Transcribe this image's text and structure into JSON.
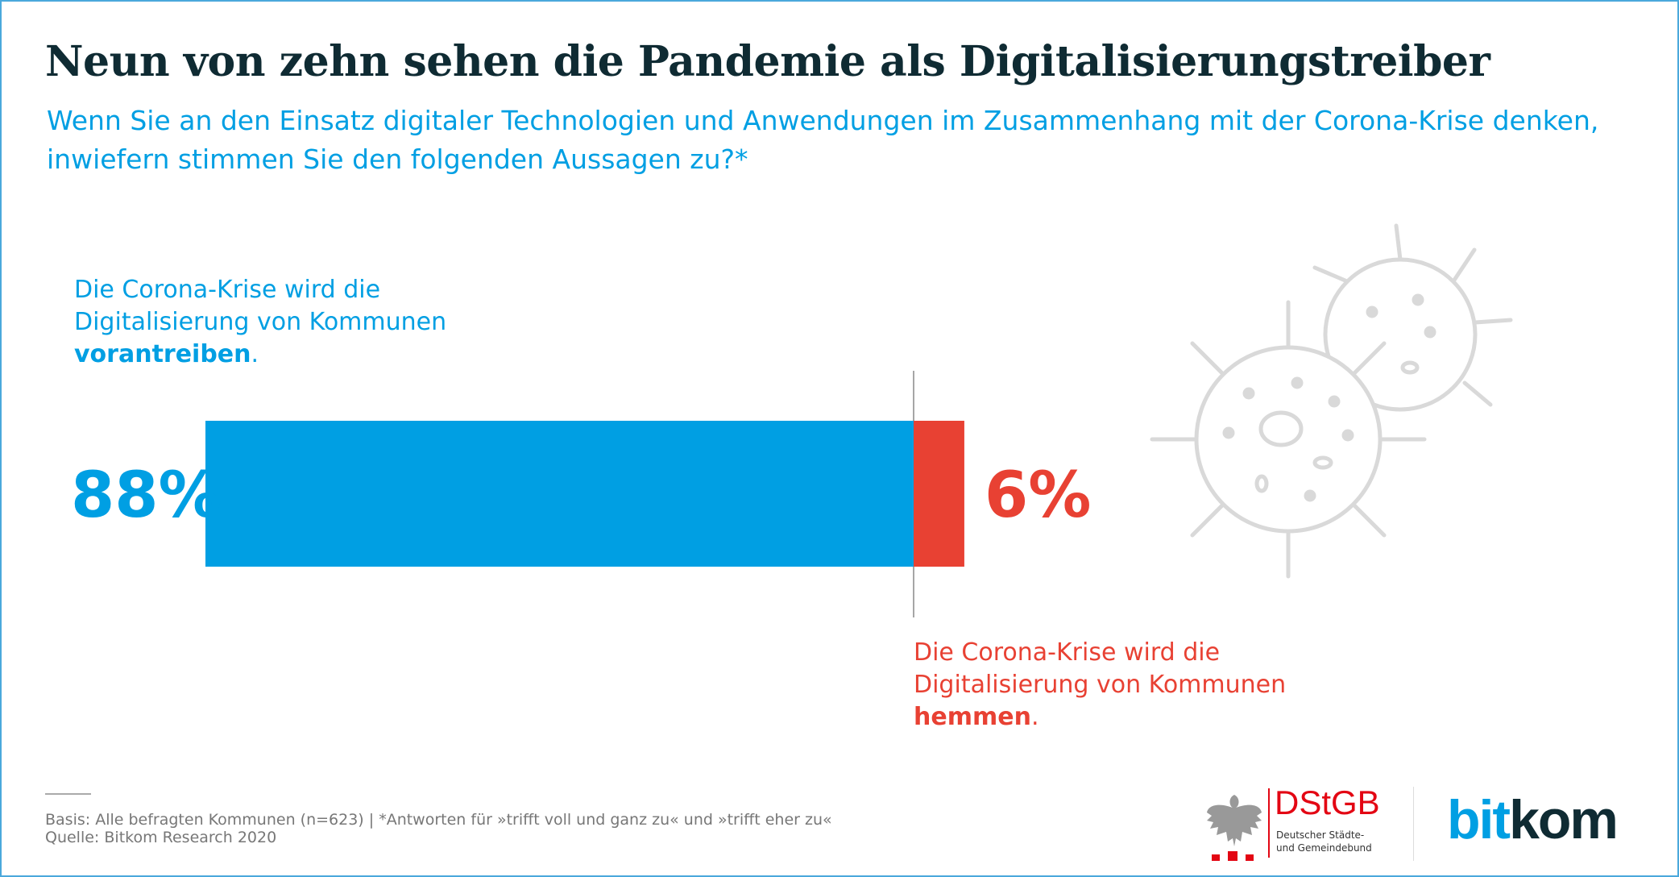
{
  "title": "Neun von zehn sehen die Pandemie als Digitalisierungstreiber",
  "subtitle": [
    "Wenn Sie an den Einsatz digitaler Technologien und Anwendungen im Zusammenhang mit der Corona-Krise denken,",
    "inwiefern stimmen Sie den folgenden Aussagen zu?*"
  ],
  "chart_data": {
    "type": "bar",
    "orientation": "horizontal-stacked-diverging",
    "categories": [
      "vorantreiben",
      "hemmen"
    ],
    "series": [
      {
        "name": "Die Corona-Krise wird die Digitalisierung von Kommunen vorantreiben.",
        "value": 88,
        "label": "88%",
        "color": "#009fe3"
      },
      {
        "name": "Die Corona-Krise wird die Digitalisierung von Kommunen hemmen.",
        "value": 6,
        "label": "6%",
        "color": "#e84133"
      }
    ],
    "unit": "%"
  },
  "labels": {
    "positive": {
      "line1": "Die Corona-Krise wird die",
      "line2": "Digitalisierung von Kommunen",
      "bold": "vorantreiben",
      "end": "."
    },
    "negative": {
      "line1": "Die Corona-Krise wird die",
      "line2": "Digitalisierung von Kommunen",
      "bold": "hemmen",
      "end": "."
    }
  },
  "footer": {
    "basis": "Basis: Alle befragten Kommunen (n=623) | *Antworten für »trifft voll und ganz zu« und »trifft eher zu«",
    "source": "Quelle: Bitkom Research 2020"
  },
  "logos": {
    "dstgb": {
      "name": "DStGB",
      "line1": "Deutscher Städte-",
      "line2": "und Gemeindebund"
    },
    "bitkom": {
      "part1": "bit",
      "part2": "kom"
    }
  },
  "colors": {
    "blue": "#009fe3",
    "red": "#e84133",
    "title": "#0f2b33",
    "icon": "#d9d9d9"
  },
  "icons": [
    "virus-icon",
    "eagle-icon"
  ]
}
